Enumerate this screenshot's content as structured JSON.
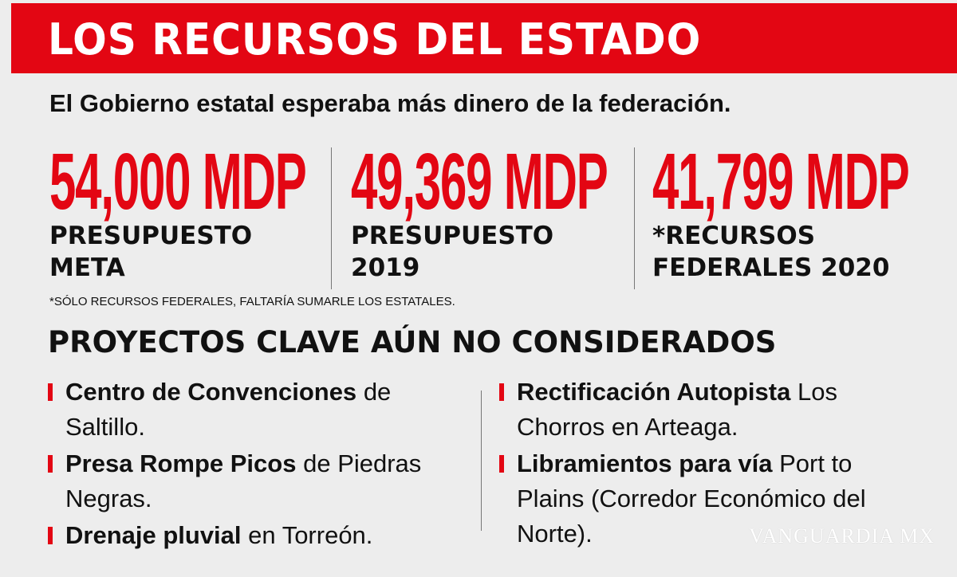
{
  "header": {
    "title": "LOS RECURSOS DEL ESTADO",
    "subtitle": "El Gobierno estatal esperaba más dinero de la federación."
  },
  "stats": [
    {
      "value": "54,000 MDP",
      "label": "PRESUPUESTO META"
    },
    {
      "value": "49,369 MDP",
      "label": "PRESUPUESTO 2019"
    },
    {
      "value": "41,799 MDP",
      "label": "*RECURSOS FEDERALES 2020"
    }
  ],
  "footnote": "*SÓLO RECURSOS FEDERALES, FALTARÍA SUMARLE LOS ESTATALES.",
  "projects": {
    "title": "PROYECTOS CLAVE AÚN NO CONSIDERADOS",
    "left": [
      {
        "bold": "Centro de Convenciones",
        "rest": "de Saltillo."
      },
      {
        "bold": "Presa Rompe Picos",
        "rest": "de Piedras Negras."
      },
      {
        "bold": "Drenaje pluvial",
        "rest": "en Torreón."
      }
    ],
    "right": [
      {
        "bold": "Rectificación Autopista",
        "rest": "Los Chorros en Arteaga."
      },
      {
        "bold": "Libramientos para vía",
        "rest": "Port to Plains (Corredor Económico del Norte)."
      }
    ]
  },
  "watermark": "VANGUARDIA MX"
}
